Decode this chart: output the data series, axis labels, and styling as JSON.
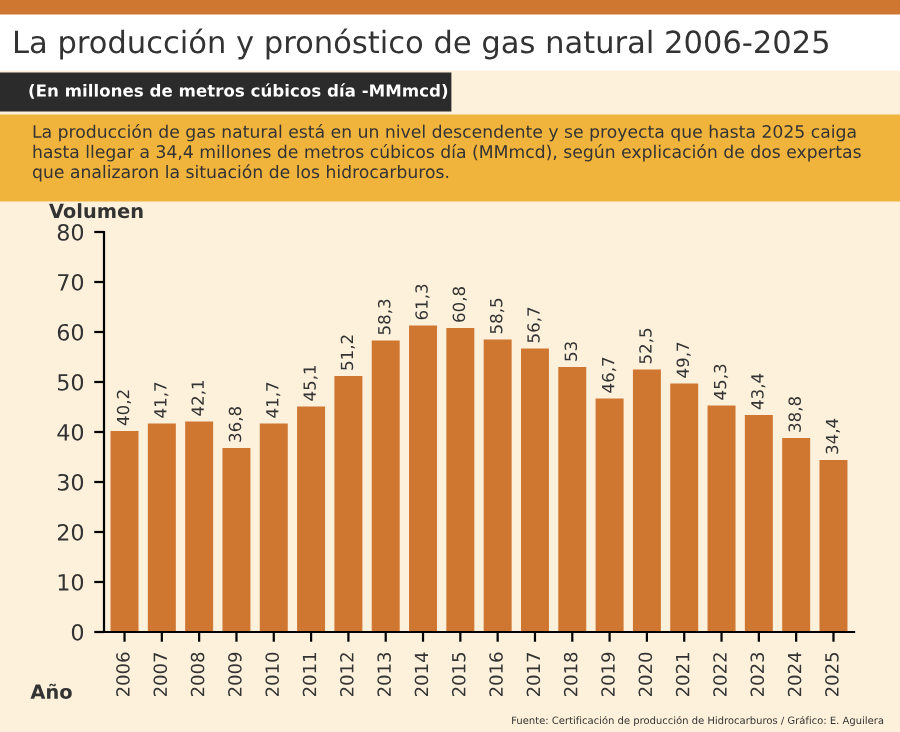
{
  "chart_data": {
    "type": "bar",
    "title": "La producción y pronóstico de gas natural 2006-2025",
    "subtitle": "(En millones de metros cúbicos día -MMmcd)",
    "ylabel": "Volumen",
    "xlabel": "Año",
    "annotations": [
      "La producción de gas natural está en un nivel descendente y se proyecta que hasta 2025 caiga hasta llegar a 34,4 millones de metros cúbicos día (MMmcd), según explicación de dos expertas que analizaron la situación de los hidrocarburos.",
      "Fuente: Certificación de producción de Hidrocarburos / Gráfico: E. Aguilera"
    ],
    "categories": [
      "2006",
      "2007",
      "2008",
      "2009",
      "2010",
      "2011",
      "2012",
      "2013",
      "2014",
      "2015",
      "2016",
      "2017",
      "2018",
      "2019",
      "2020",
      "2021",
      "2022",
      "2023",
      "2024",
      "2025"
    ],
    "values": [
      40.2,
      41.7,
      42.1,
      36.8,
      41.7,
      45.1,
      51.2,
      58.3,
      61.3,
      60.8,
      58.5,
      56.7,
      53,
      46.7,
      52.5,
      49.7,
      45.3,
      43.4,
      38.8,
      34.4
    ],
    "value_labels": [
      "40,2",
      "41,7",
      "42,1",
      "36,8",
      "41,7",
      "45,1",
      "51,2",
      "58,3",
      "61,3",
      "60,8",
      "58,5",
      "56,7",
      "53",
      "46,7",
      "52,5",
      "49,7",
      "45,3",
      "43,4",
      "38,8",
      "34,4"
    ],
    "color": "#cf7631",
    "ylim": [
      0,
      80
    ],
    "yticks": [
      0,
      10,
      20,
      30,
      40,
      50,
      60,
      70,
      80
    ],
    "grid": false,
    "legend": false
  }
}
